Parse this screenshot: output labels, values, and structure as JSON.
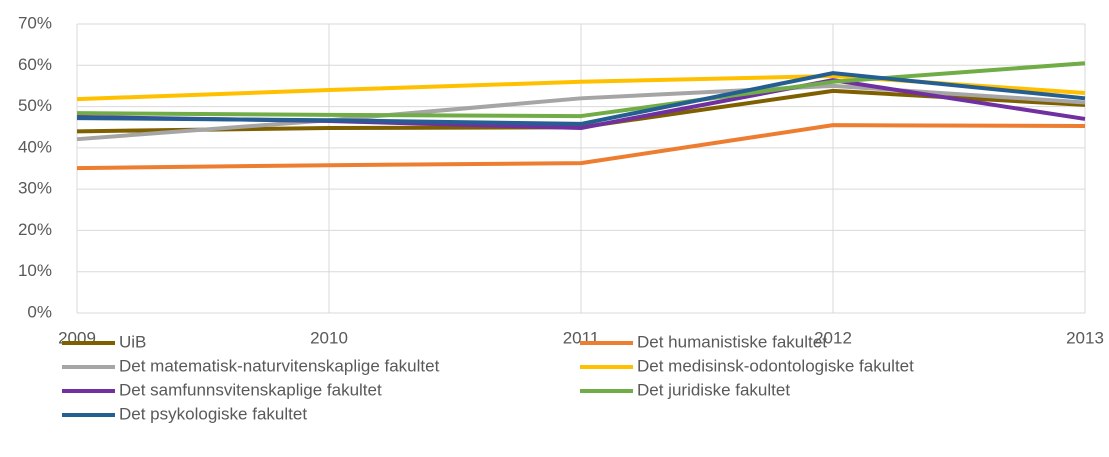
{
  "chart_data": {
    "type": "line",
    "x": [
      2009,
      2010,
      2011,
      2012,
      2013
    ],
    "xlim": [
      2009,
      2013
    ],
    "xticks": [
      2009,
      2010,
      2011,
      2012,
      2013
    ],
    "ylim": [
      0,
      70
    ],
    "yticks": [
      {
        "value": 0,
        "label": "0%"
      },
      {
        "value": 10,
        "label": "10%"
      },
      {
        "value": 20,
        "label": "20%"
      },
      {
        "value": 30,
        "label": "30%"
      },
      {
        "value": 40,
        "label": "40%"
      },
      {
        "value": 50,
        "label": "50%"
      },
      {
        "value": 60,
        "label": "60%"
      },
      {
        "value": 70,
        "label": "70%"
      }
    ],
    "grid": true,
    "legend": "bottom",
    "series": [
      {
        "name": "UiB",
        "color": "#7f6000",
        "values": [
          44,
          44.8,
          45,
          53.8,
          50.4
        ]
      },
      {
        "name": "Det humanistiske fakultet",
        "color": "#ed7d31",
        "values": [
          35.1,
          35.8,
          36.3,
          45.5,
          45.3
        ]
      },
      {
        "name": "Det matematisk-naturvitenskaplige fakultet",
        "color": "#a5a5a5",
        "values": [
          42.1,
          46.7,
          52,
          55,
          51
        ]
      },
      {
        "name": "Det medisinsk-odontologiske fakultet",
        "color": "#ffc000",
        "values": [
          51.8,
          54,
          56,
          57.4,
          53.3
        ]
      },
      {
        "name": "Det samfunnsvitenskaplige fakultet",
        "color": "#7030a0",
        "values": [
          47.5,
          46.5,
          44.8,
          56.4,
          47
        ]
      },
      {
        "name": "Det juridiske fakultet",
        "color": "#70ad47",
        "values": [
          48.4,
          48,
          47.7,
          56,
          60.5
        ]
      },
      {
        "name": "Det psykologiske fakultet",
        "color": "#255e91",
        "values": [
          47.2,
          46.7,
          45.8,
          58.1,
          52
        ]
      }
    ]
  }
}
